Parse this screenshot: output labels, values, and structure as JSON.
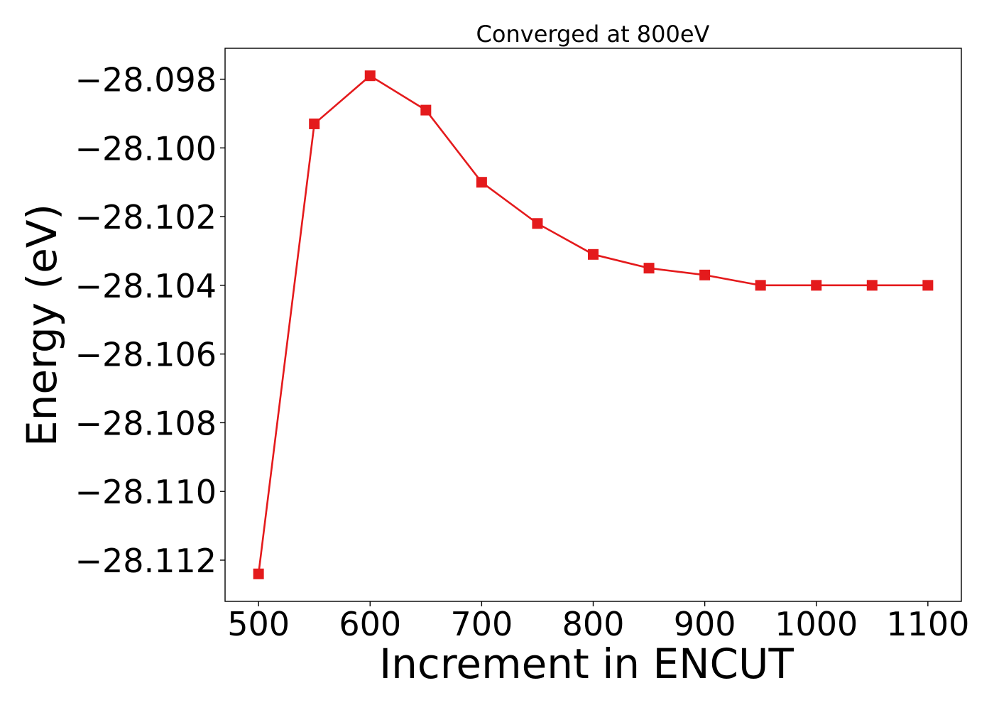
{
  "chart_data": {
    "type": "line",
    "title": "Converged at 800eV",
    "xlabel": "Increment in ENCUT",
    "ylabel": "Energy (eV)",
    "x": [
      500,
      550,
      600,
      650,
      700,
      750,
      800,
      850,
      900,
      950,
      1000,
      1050,
      1100
    ],
    "series": [
      {
        "values": [
          -28.1124,
          -28.0993,
          -28.0979,
          -28.0989,
          -28.101,
          -28.1022,
          -28.1031,
          -28.1035,
          -28.1037,
          -28.104,
          -28.104,
          -28.104,
          -28.104
        ],
        "color": "#e41a1c",
        "marker": "square"
      }
    ],
    "xlim": [
      470,
      1130
    ],
    "ylim": [
      -28.1132,
      -28.0971
    ],
    "xticks": [
      500,
      600,
      700,
      800,
      900,
      1000,
      1100
    ],
    "xtick_labels": [
      "500",
      "600",
      "700",
      "800",
      "900",
      "1000",
      "1100"
    ],
    "yticks": [
      -28.112,
      -28.11,
      -28.108,
      -28.106,
      -28.104,
      -28.102,
      -28.1,
      -28.098
    ],
    "ytick_labels": [
      "−28.112",
      "−28.110",
      "−28.108",
      "−28.106",
      "−28.104",
      "−28.102",
      "−28.100",
      "−28.098"
    ],
    "grid": false,
    "legend": false
  }
}
